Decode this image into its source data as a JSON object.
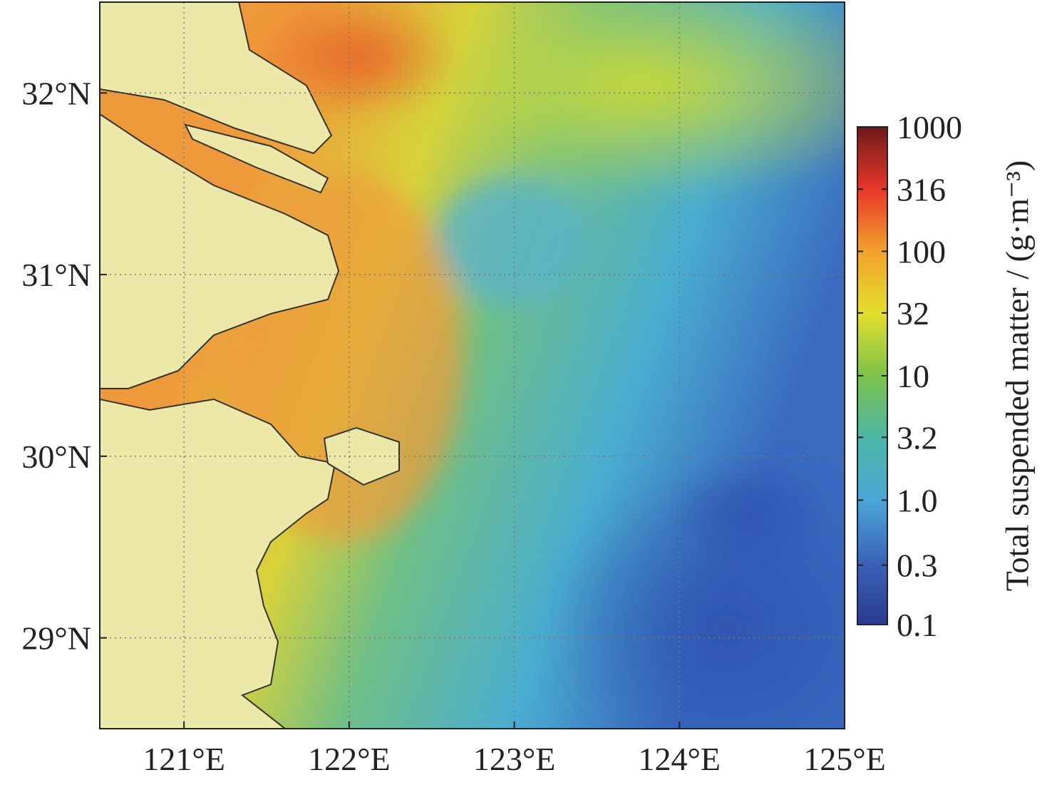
{
  "chart_data": {
    "type": "map",
    "xlim": [
      120.49,
      125
    ],
    "ylim": [
      28.5,
      32.5
    ],
    "xticks": [
      {
        "value": 121,
        "label": "121°E"
      },
      {
        "value": 122,
        "label": "122°E"
      },
      {
        "value": 123,
        "label": "123°E"
      },
      {
        "value": 124,
        "label": "124°E"
      },
      {
        "value": 125,
        "label": "125°E"
      }
    ],
    "yticks": [
      {
        "value": 29,
        "label": "29°N"
      },
      {
        "value": 30,
        "label": "30°N"
      },
      {
        "value": 31,
        "label": "31°N"
      },
      {
        "value": 32,
        "label": "32°N"
      }
    ],
    "grid": true,
    "colorbar": {
      "title": "Total suspended matter / (g·m⁻³)",
      "scale": "log",
      "lim": [
        0.1,
        1000
      ],
      "ticks": [
        1000,
        316,
        100,
        32,
        10,
        3.2,
        {
          "value": 1,
          "label": "1.0"
        },
        0.3,
        0.1
      ],
      "colormap": [
        "#2a3a8f",
        "#3a63b8",
        "#4aa6d6",
        "#4cb7a6",
        "#7cc24a",
        "#e3df2c",
        "#f3a22c",
        "#e8372a",
        "#6e1a1a"
      ]
    }
  }
}
